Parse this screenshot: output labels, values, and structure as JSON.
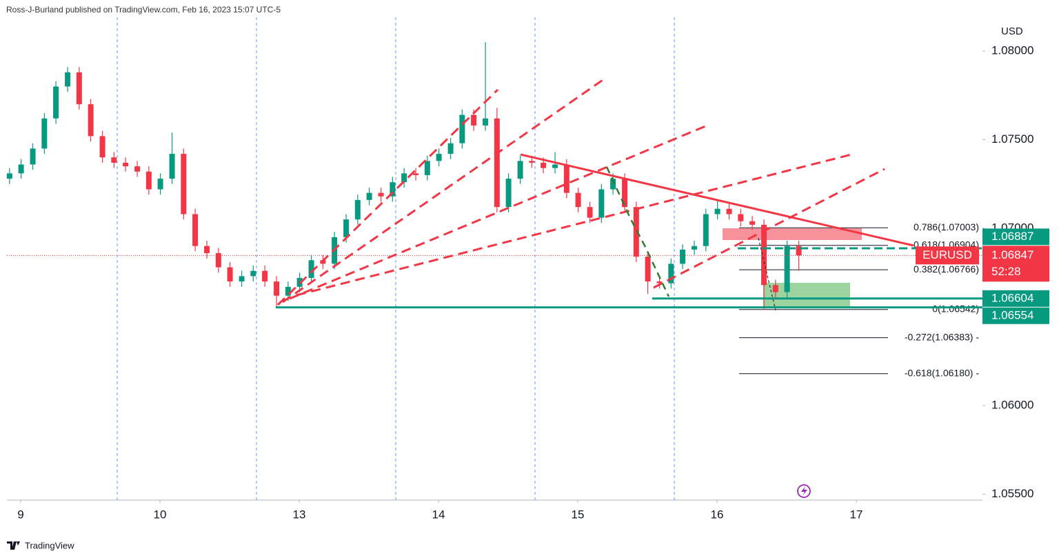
{
  "chart_data": {
    "type": "candlestick",
    "header": "Ross-J-Burland published on TradingView.com, Feb 16, 2023 15:07 UTC-5",
    "footer": "TradingView",
    "currency": "USD",
    "symbol": "EURUSD",
    "countdown": "52:28",
    "last_price": 1.06847,
    "up_color": "#089981",
    "down_color": "#f23645",
    "xlim": [
      -0.099,
      6.906
    ],
    "ylim": [
      1.05467,
      1.08288
    ],
    "xticks": [
      {
        "value": 0,
        "label": "9"
      },
      {
        "value": 1,
        "label": "10"
      },
      {
        "value": 2,
        "label": "13"
      },
      {
        "value": 3,
        "label": "14"
      },
      {
        "value": 4,
        "label": "15"
      },
      {
        "value": 5,
        "label": "16"
      },
      {
        "value": 6,
        "label": "17"
      }
    ],
    "yticks": [
      {
        "value": 1.08,
        "label": "1.08000"
      },
      {
        "value": 1.075,
        "label": "1.07500"
      },
      {
        "value": 1.07,
        "label": "1.07000"
      },
      {
        "value": 1.06,
        "label": "1.06000"
      },
      {
        "value": 1.055,
        "label": "1.05500"
      }
    ],
    "x": [
      -0.08,
      0.003,
      0.087,
      0.17,
      0.253,
      0.337,
      0.42,
      0.503,
      0.587,
      0.67,
      0.753,
      0.837,
      0.92,
      1.003,
      1.087,
      1.17,
      1.253,
      1.337,
      1.42,
      1.503,
      1.587,
      1.67,
      1.753,
      1.837,
      1.92,
      2.003,
      2.087,
      2.17,
      2.253,
      2.337,
      2.42,
      2.503,
      2.587,
      2.67,
      2.753,
      2.837,
      2.92,
      3.003,
      3.087,
      3.17,
      3.253,
      3.337,
      3.42,
      3.503,
      3.587,
      3.67,
      3.753,
      3.837,
      3.92,
      4.003,
      4.087,
      4.17,
      4.253,
      4.337,
      4.42,
      4.503,
      4.587,
      4.67,
      4.753,
      4.837,
      4.92,
      5.003,
      5.087,
      5.17,
      5.253,
      5.337,
      5.42,
      5.503,
      5.587
    ],
    "open": [
      1.0728,
      1.0731,
      1.0736,
      1.0745,
      1.0762,
      1.078,
      1.0788,
      1.077,
      1.0752,
      1.074,
      1.0737,
      1.0735,
      1.0732,
      1.0722,
      1.0728,
      1.0742,
      1.0708,
      1.069,
      1.0686,
      1.0678,
      1.067,
      1.0673,
      1.0676,
      1.067,
      1.0662,
      1.0667,
      1.0672,
      1.0682,
      1.068,
      1.0695,
      1.0705,
      1.0716,
      1.072,
      1.0718,
      1.0726,
      1.0731,
      1.073,
      1.0738,
      1.0742,
      1.0748,
      1.0764,
      1.0758,
      1.0762,
      1.0712,
      1.0728,
      1.0738,
      1.0737,
      1.0734,
      1.0736,
      1.072,
      1.0712,
      1.0706,
      1.0722,
      1.0728,
      1.0712,
      1.0684,
      1.067,
      1.0669,
      1.068,
      1.0688,
      1.069,
      1.0708,
      1.0711,
      1.0708,
      1.0704,
      1.0702,
      1.0668,
      1.0664,
      1.069
    ],
    "high": [
      1.0734,
      1.0739,
      1.0748,
      1.0765,
      1.0783,
      1.0791,
      1.0791,
      1.0773,
      1.0755,
      1.0743,
      1.074,
      1.0738,
      1.0735,
      1.0731,
      1.0754,
      1.0745,
      1.0711,
      1.0693,
      1.0689,
      1.0681,
      1.0676,
      1.0679,
      1.0679,
      1.0673,
      1.067,
      1.0675,
      1.0685,
      1.0685,
      1.0698,
      1.0708,
      1.0719,
      1.0723,
      1.0723,
      1.0729,
      1.0734,
      1.0734,
      1.0741,
      1.0745,
      1.0751,
      1.0767,
      1.0767,
      1.0805,
      1.0768,
      1.0731,
      1.0741,
      1.0741,
      1.074,
      1.0743,
      1.0739,
      1.0723,
      1.0715,
      1.0725,
      1.0731,
      1.0731,
      1.0715,
      1.0687,
      1.0673,
      1.0683,
      1.0691,
      1.0693,
      1.0711,
      1.0716,
      1.0714,
      1.0711,
      1.0707,
      1.0705,
      1.0671,
      1.0693,
      1.0693
    ],
    "low": [
      1.0725,
      1.0728,
      1.0733,
      1.0742,
      1.0759,
      1.0777,
      1.0767,
      1.0749,
      1.0737,
      1.0734,
      1.0732,
      1.0729,
      1.0719,
      1.0719,
      1.0725,
      1.0705,
      1.0687,
      1.0683,
      1.0675,
      1.0667,
      1.0667,
      1.067,
      1.0667,
      1.06556,
      1.0659,
      1.0664,
      1.0669,
      1.0677,
      1.0677,
      1.0692,
      1.0702,
      1.0713,
      1.0715,
      1.0715,
      1.0723,
      1.0727,
      1.0727,
      1.0735,
      1.0739,
      1.0745,
      1.0755,
      1.0755,
      1.0709,
      1.0709,
      1.0725,
      1.0734,
      1.0731,
      1.0731,
      1.0717,
      1.0709,
      1.0703,
      1.0703,
      1.0719,
      1.0709,
      1.0681,
      1.0663,
      1.0666,
      1.0666,
      1.0677,
      1.0685,
      1.0687,
      1.0705,
      1.0705,
      1.0701,
      1.0699,
      1.0654,
      1.0661,
      1.0661,
      1.0676
    ],
    "close": [
      1.0731,
      1.0736,
      1.0745,
      1.0762,
      1.078,
      1.0788,
      1.077,
      1.0752,
      1.074,
      1.0737,
      1.0735,
      1.0732,
      1.0722,
      1.0728,
      1.0742,
      1.0708,
      1.069,
      1.0686,
      1.0678,
      1.067,
      1.0673,
      1.0676,
      1.067,
      1.0662,
      1.0667,
      1.0672,
      1.0682,
      1.068,
      1.0695,
      1.0705,
      1.0716,
      1.072,
      1.0718,
      1.0726,
      1.0731,
      1.073,
      1.0738,
      1.0742,
      1.0748,
      1.0764,
      1.0758,
      1.0762,
      1.0712,
      1.0728,
      1.0738,
      1.0737,
      1.0734,
      1.0736,
      1.072,
      1.0712,
      1.0706,
      1.0722,
      1.0728,
      1.0712,
      1.0684,
      1.067,
      1.0669,
      1.068,
      1.0688,
      1.069,
      1.0708,
      1.0711,
      1.0708,
      1.0704,
      1.0702,
      1.0668,
      1.0664,
      1.069,
      1.06847
    ],
    "price_tags": [
      {
        "value": 1.06887,
        "color": "#089981"
      },
      {
        "value": 1.06604,
        "color": "#089981"
      },
      {
        "value": 1.06554,
        "color": "#089981"
      }
    ],
    "fib_levels": [
      {
        "label": "0.786(1.07003)",
        "value": 1.07003
      },
      {
        "label": "0.618(1.06904)",
        "value": 1.06904
      },
      {
        "label": "0.382(1.06766)",
        "value": 1.06766
      },
      {
        "label": "0(1.06542)",
        "value": 1.06542
      },
      {
        "label": "-0.272(1.06383) -",
        "value": 1.06383
      },
      {
        "label": "-0.618(1.06180) -",
        "value": 1.0618
      }
    ]
  }
}
